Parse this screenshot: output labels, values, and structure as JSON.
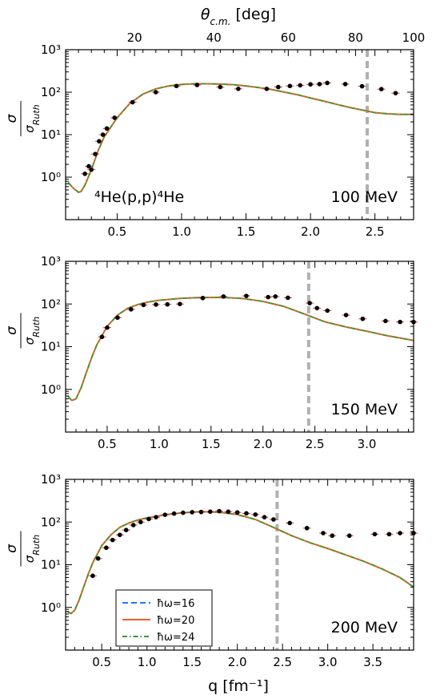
{
  "figure": {
    "top_axis_label": "θ_c.m. [deg]",
    "top_ticks": [
      "20",
      "40",
      "60",
      "80",
      "100"
    ],
    "xlabel": "q [fm⁻¹]",
    "ylabel_num": "σ",
    "ylabel_den": "σ_Ruth",
    "reaction_label": "⁴He(p,p)⁴He",
    "colors": {
      "hw16": "#1f77ff",
      "hw20": "#e8642a",
      "hw24": "#2ca02c",
      "data": "#000000",
      "errorbar": "#e03030",
      "vline": "#b0b0b0"
    }
  },
  "legend": {
    "entries": [
      {
        "label": "ħω=16",
        "style": "dashed",
        "color": "#1f77ff"
      },
      {
        "label": "ħω=20",
        "style": "solid",
        "color": "#e8642a"
      },
      {
        "label": "ħω=24",
        "style": "dashdot",
        "color": "#2ca02c"
      }
    ]
  },
  "chart_data": [
    {
      "type": "line",
      "energy_label": "100 MeV",
      "xlim": [
        0.1,
        2.8
      ],
      "ylim_log10": [
        -1,
        3
      ],
      "yscale": "log",
      "x_ticks": [
        "0.5",
        "1.0",
        "1.5",
        "2.0",
        "2.5"
      ],
      "y_ticks": [
        "10⁰",
        "10¹",
        "10²",
        "10³"
      ],
      "vline_q": 2.44,
      "theory_q": [
        0.12,
        0.16,
        0.2,
        0.22,
        0.25,
        0.3,
        0.35,
        0.4,
        0.5,
        0.6,
        0.7,
        0.8,
        0.9,
        1.0,
        1.1,
        1.2,
        1.3,
        1.4,
        1.5,
        1.6,
        1.7,
        1.8,
        1.9,
        2.0,
        2.1,
        2.2,
        2.3,
        2.4,
        2.5,
        2.6,
        2.7,
        2.8
      ],
      "theory_sigma": [
        0.75,
        0.55,
        0.44,
        0.46,
        0.65,
        1.5,
        4,
        9,
        25,
        55,
        90,
        120,
        140,
        152,
        158,
        158,
        155,
        150,
        140,
        128,
        115,
        100,
        87,
        73,
        62,
        52,
        44,
        38,
        33,
        31,
        30,
        30
      ],
      "data_q": [
        0.25,
        0.28,
        0.3,
        0.33,
        0.36,
        0.39,
        0.42,
        0.48,
        0.62,
        0.8,
        0.96,
        1.12,
        1.3,
        1.44,
        1.66,
        1.75,
        1.84,
        1.92,
        2.0,
        2.07,
        2.13,
        2.27,
        2.4,
        2.55,
        2.66
      ],
      "data_sigma": [
        1.2,
        1.8,
        1.5,
        3.5,
        7,
        10,
        14,
        25,
        58,
        100,
        140,
        148,
        132,
        120,
        120,
        132,
        140,
        145,
        153,
        155,
        165,
        155,
        138,
        118,
        95
      ]
    },
    {
      "type": "line",
      "energy_label": "150 MeV",
      "xlim": [
        0.1,
        3.45
      ],
      "ylim_log10": [
        -1,
        3
      ],
      "yscale": "log",
      "x_ticks": [
        "0.5",
        "1.0",
        "1.5",
        "2.0",
        "2.5",
        "3.0"
      ],
      "y_ticks": [
        "10⁰",
        "10¹",
        "10²",
        "10³"
      ],
      "vline_q": 2.44,
      "theory_q": [
        0.12,
        0.16,
        0.2,
        0.25,
        0.3,
        0.35,
        0.4,
        0.5,
        0.6,
        0.7,
        0.8,
        0.9,
        1.0,
        1.2,
        1.4,
        1.6,
        1.8,
        2.0,
        2.2,
        2.4,
        2.6,
        2.8,
        3.0,
        3.2,
        3.45
      ],
      "theory_sigma": [
        0.7,
        0.55,
        0.6,
        1.1,
        2.5,
        5.5,
        11,
        30,
        55,
        80,
        98,
        112,
        122,
        135,
        142,
        143,
        135,
        115,
        88,
        58,
        38,
        29,
        23,
        18,
        14
      ],
      "data_q": [
        0.45,
        0.5,
        0.6,
        0.73,
        0.85,
        0.97,
        1.08,
        1.2,
        1.42,
        1.62,
        1.84,
        2.05,
        2.12,
        2.24,
        2.45,
        2.52,
        2.62,
        2.8,
        2.96,
        3.18,
        3.32,
        3.45
      ],
      "data_sigma": [
        17,
        28,
        48,
        75,
        95,
        97,
        98,
        100,
        138,
        150,
        155,
        145,
        150,
        140,
        105,
        80,
        70,
        55,
        45,
        40,
        38,
        38
      ]
    },
    {
      "type": "line",
      "energy_label": "200 MeV",
      "xlim": [
        0.1,
        3.95
      ],
      "ylim_log10": [
        -1,
        3
      ],
      "yscale": "log",
      "x_ticks": [
        "0.5",
        "1.0",
        "1.5",
        "2.0",
        "2.5",
        "3.0",
        "3.5"
      ],
      "y_ticks": [
        "10⁰",
        "10¹",
        "10²",
        "10³"
      ],
      "vline_q": 2.44,
      "theory_q": [
        0.12,
        0.16,
        0.2,
        0.25,
        0.3,
        0.35,
        0.4,
        0.5,
        0.6,
        0.7,
        0.8,
        0.9,
        1.0,
        1.2,
        1.4,
        1.6,
        1.8,
        2.0,
        2.2,
        2.4,
        2.6,
        2.8,
        3.0,
        3.2,
        3.4,
        3.6,
        3.8,
        3.95
      ],
      "theory_sigma": [
        0.8,
        0.72,
        0.85,
        1.5,
        3,
        6,
        11,
        28,
        50,
        75,
        95,
        112,
        125,
        148,
        165,
        175,
        170,
        150,
        115,
        75,
        48,
        33,
        24,
        17,
        12,
        8,
        5,
        3
      ],
      "data_q": [
        0.4,
        0.46,
        0.55,
        0.62,
        0.7,
        0.77,
        0.85,
        0.93,
        1.02,
        1.1,
        1.2,
        1.3,
        1.4,
        1.5,
        1.6,
        1.7,
        1.8,
        1.9,
        2.0,
        2.1,
        2.2,
        2.3,
        2.4,
        2.58,
        2.77,
        2.95,
        3.05,
        3.24,
        3.52,
        3.68,
        3.8,
        3.95
      ],
      "data_sigma": [
        5.5,
        14,
        25,
        38,
        50,
        65,
        85,
        100,
        118,
        130,
        148,
        158,
        165,
        170,
        172,
        175,
        180,
        175,
        168,
        160,
        150,
        130,
        115,
        95,
        72,
        55,
        48,
        48,
        52,
        52,
        55,
        55
      ]
    }
  ]
}
